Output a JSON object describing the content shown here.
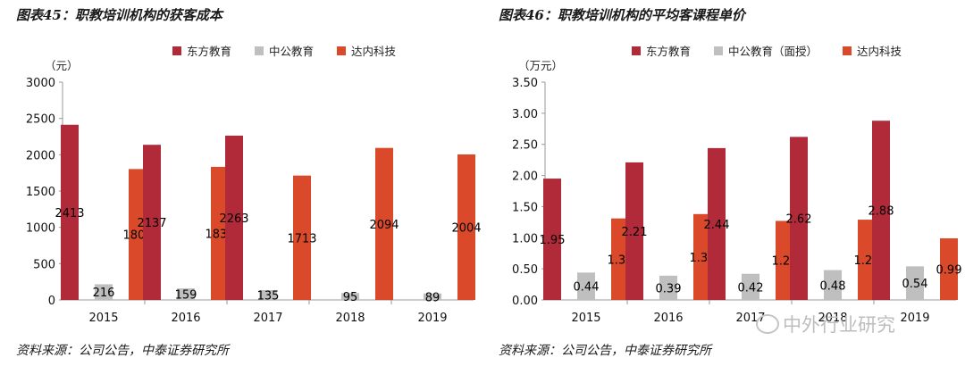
{
  "chart_data": [
    {
      "type": "bar",
      "title": "图表45：职教培训机构的获客成本",
      "unit_label": "（元）",
      "categories": [
        "2015",
        "2016",
        "2017",
        "2018",
        "2019"
      ],
      "ylim": [
        0,
        3000
      ],
      "yticks": [
        "0",
        "500",
        "1000",
        "1500",
        "2000",
        "2500",
        "3000"
      ],
      "legend_position": "top",
      "series": [
        {
          "name": "东方教育",
          "color": "#b02a3a",
          "values": [
            2413,
            2137,
            2263,
            null,
            null
          ]
        },
        {
          "name": "中公教育",
          "color": "#bfbfbf",
          "values": [
            216,
            159,
            135,
            95,
            89
          ]
        },
        {
          "name": "达内科技",
          "color": "#d9492a",
          "values": [
            1803,
            1833,
            1713,
            2094,
            2004
          ]
        }
      ],
      "source": "资料来源：公司公告，中泰证券研究所"
    },
    {
      "type": "bar",
      "title": "图表46：职教培训机构的平均客课程单价",
      "unit_label": "（万元）",
      "categories": [
        "2015",
        "2016",
        "2017",
        "2018",
        "2019"
      ],
      "ylim": [
        0,
        3.5
      ],
      "yticks": [
        "0.00",
        "0.50",
        "1.00",
        "1.50",
        "2.00",
        "2.50",
        "3.00",
        "3.50"
      ],
      "legend_position": "top",
      "series": [
        {
          "name": "东方教育",
          "color": "#b02a3a",
          "values": [
            1.95,
            2.21,
            2.44,
            2.62,
            2.88
          ],
          "labels": [
            "1.95",
            "2.21",
            "2.44",
            "2.62",
            "2.88"
          ]
        },
        {
          "name": "中公教育（面授）",
          "color": "#bfbfbf",
          "values": [
            0.44,
            0.39,
            0.42,
            0.48,
            0.54
          ],
          "labels": [
            "0.44",
            "0.39",
            "0.42",
            "0.48",
            "0.54"
          ]
        },
        {
          "name": "达内科技",
          "color": "#d9492a",
          "values": [
            1.31,
            1.38,
            1.27,
            1.29,
            0.99
          ],
          "labels": [
            "1.31",
            "1.38",
            "1.27",
            "1.29",
            "0.99"
          ]
        }
      ],
      "source": "资料来源：公司公告，中泰证券研究所"
    }
  ],
  "watermark": {
    "text": "中外行业研究",
    "icon": "wechat-icon"
  }
}
